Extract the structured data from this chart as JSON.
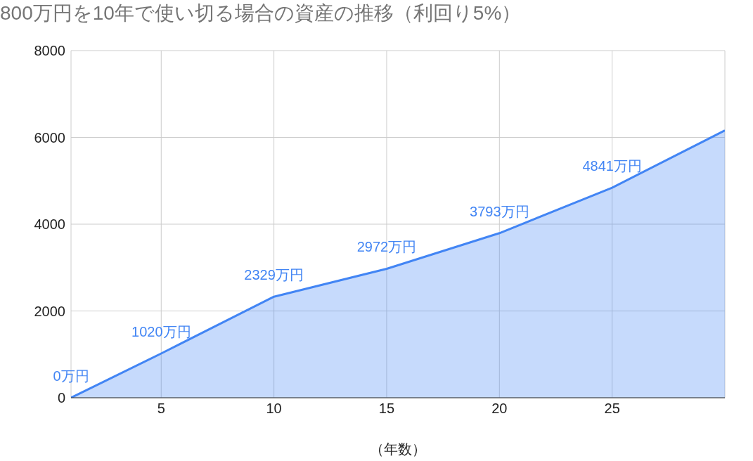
{
  "chart_data": {
    "type": "area",
    "title": "800万円を10年で使い切る場合の資産の推移（利回り5%）",
    "xlabel": "（年数）",
    "x": [
      1,
      5,
      10,
      15,
      20,
      25,
      30
    ],
    "series": [
      {
        "color": "#4285f4",
        "values": [
          0,
          1020,
          2329,
          2972,
          3793,
          4841,
          6160
        ],
        "value_labels": [
          "0万円",
          "1020万円",
          "2329万円",
          "2972万円",
          "3793万円",
          "4841万円",
          null
        ]
      }
    ],
    "xlim": [
      1,
      30
    ],
    "xticks": [
      5,
      10,
      15,
      20,
      25
    ],
    "ylim": [
      0,
      8000
    ],
    "yticks": [
      0,
      2000,
      4000,
      6000,
      8000
    ],
    "grid": true,
    "legend": false,
    "marker": "none"
  }
}
